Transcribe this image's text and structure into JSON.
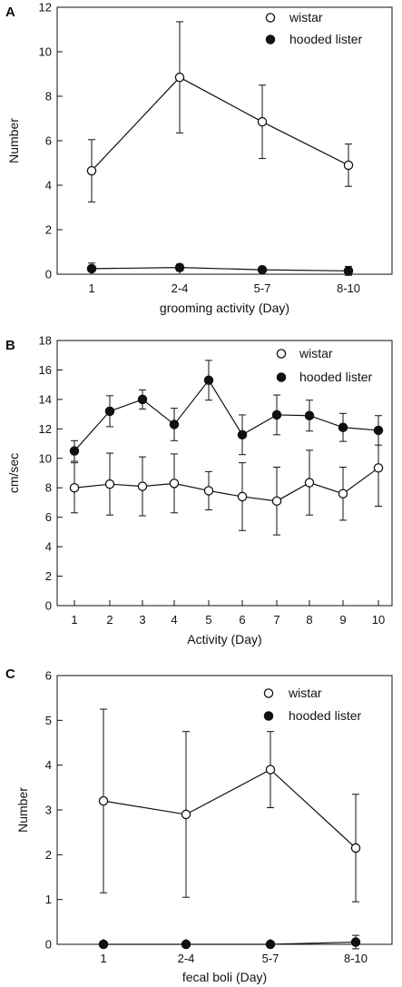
{
  "chart_data": [
    {
      "type": "line",
      "panel": "A",
      "categories": [
        "1",
        "2-4",
        "5-7",
        "8-10"
      ],
      "xlabel": "grooming activity (Day)",
      "ylabel": "Number",
      "ylim": [
        0,
        12
      ],
      "yticks": [
        0,
        2,
        4,
        6,
        8,
        10,
        12
      ],
      "grid": false,
      "legend_position": "top-right",
      "series": [
        {
          "name": "wistar",
          "marker": "open-circle",
          "values": [
            4.65,
            8.85,
            6.85,
            4.9
          ],
          "errors": [
            1.4,
            2.5,
            1.65,
            0.95
          ]
        },
        {
          "name": "hooded lister",
          "marker": "filled-circle",
          "values": [
            0.25,
            0.3,
            0.2,
            0.15
          ],
          "errors": [
            0.25,
            0.15,
            0.1,
            0.2
          ]
        }
      ]
    },
    {
      "type": "line",
      "panel": "B",
      "categories": [
        "1",
        "2",
        "3",
        "4",
        "5",
        "6",
        "7",
        "8",
        "9",
        "10"
      ],
      "xlabel": "Activity (Day)",
      "ylabel": "cm/sec",
      "ylim": [
        0,
        18
      ],
      "yticks": [
        0,
        2,
        4,
        6,
        8,
        10,
        12,
        14,
        16,
        18
      ],
      "grid": false,
      "legend_position": "top-right",
      "series": [
        {
          "name": "wistar",
          "marker": "open-circle",
          "values": [
            8.0,
            8.25,
            8.1,
            8.3,
            7.8,
            7.4,
            7.1,
            8.35,
            7.6,
            9.35
          ],
          "errors": [
            1.7,
            2.1,
            2.0,
            2.0,
            1.3,
            2.3,
            2.3,
            2.2,
            1.8,
            2.6
          ]
        },
        {
          "name": "hooded lister",
          "marker": "filled-circle",
          "values": [
            10.5,
            13.2,
            14.0,
            12.3,
            15.3,
            11.6,
            12.95,
            12.9,
            12.1,
            11.9
          ],
          "errors": [
            0.7,
            1.05,
            0.65,
            1.1,
            1.35,
            1.35,
            1.35,
            1.05,
            0.95,
            1.0
          ]
        }
      ]
    },
    {
      "type": "line",
      "panel": "C",
      "categories": [
        "1",
        "2-4",
        "5-7",
        "8-10"
      ],
      "xlabel": "fecal boli (Day)",
      "ylabel": "Number",
      "ylim": [
        0,
        6
      ],
      "yticks": [
        0,
        1,
        2,
        3,
        4,
        5,
        6
      ],
      "grid": false,
      "legend_position": "top-right",
      "series": [
        {
          "name": "wistar",
          "marker": "open-circle",
          "values": [
            3.2,
            2.9,
            3.9,
            2.15
          ],
          "errors": [
            2.05,
            1.85,
            0.85,
            1.2
          ]
        },
        {
          "name": "hooded lister",
          "marker": "filled-circle",
          "values": [
            0.0,
            0.0,
            0.0,
            0.05
          ],
          "errors": [
            0.0,
            0.0,
            0.0,
            0.15
          ]
        }
      ]
    }
  ]
}
